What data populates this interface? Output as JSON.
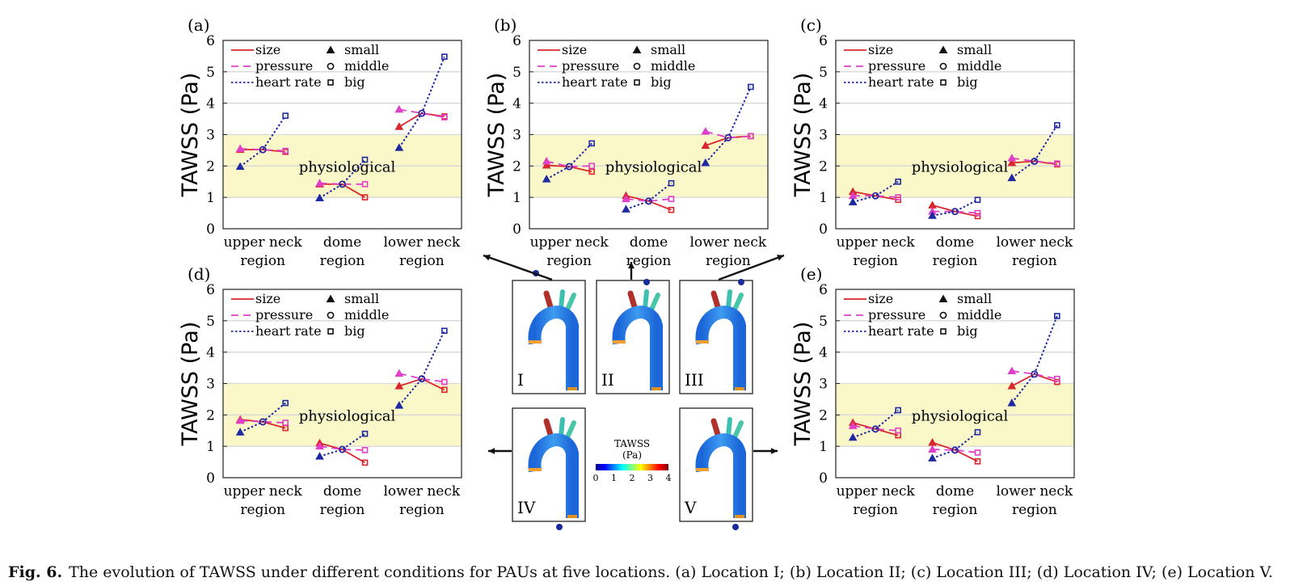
{
  "colors": {
    "size": "#d9272e",
    "pressure": "#e040c8",
    "heart_rate": "#1f2aa0",
    "band": "#faf8c8",
    "grid": "#d8d8d8"
  },
  "legend": {
    "lines": [
      "size",
      "pressure",
      "heart rate"
    ],
    "markers": [
      "small",
      "middle",
      "big"
    ]
  },
  "band_label": "physiological",
  "inset": {
    "colorbar_title": "TAWSS",
    "colorbar_unit": "(Pa)",
    "colorbar_ticks": [
      "0",
      "1",
      "2",
      "3",
      "4"
    ],
    "locations": [
      "I",
      "II",
      "III",
      "IV",
      "V"
    ]
  },
  "caption": {
    "label": "Fig. 6.",
    "text": "The evolution of TAWSS under different conditions for PAUs at five locations. (a) Location I; (b) Location II; (c) Location III; (d) Location IV; (e) Location V."
  },
  "chart_data": [
    {
      "type": "line",
      "panel": "(a)",
      "categories": [
        "upper neck\nregion",
        "dome\nregion",
        "lower neck\nregion"
      ],
      "ylabel": "TAWSS (Pa)",
      "ylim": [
        0,
        6
      ],
      "yticks": [
        0,
        1,
        2,
        3,
        4,
        5,
        6
      ],
      "physiological_band": [
        1,
        3
      ],
      "series": [
        {
          "name": "size",
          "values": [
            [
              2.52,
              2.52,
              2.45
            ],
            [
              1.42,
              1.42,
              1.0
            ],
            [
              3.25,
              3.68,
              3.58
            ]
          ]
        },
        {
          "name": "pressure",
          "values": [
            [
              2.55,
              2.52,
              2.48
            ],
            [
              1.45,
              1.42,
              1.42
            ],
            [
              3.8,
              3.68,
              3.55
            ]
          ]
        },
        {
          "name": "heart rate",
          "values": [
            [
              1.98,
              2.52,
              3.6
            ],
            [
              0.98,
              1.42,
              2.2
            ],
            [
              2.58,
              3.68,
              5.48
            ]
          ]
        }
      ]
    },
    {
      "type": "line",
      "panel": "(b)",
      "categories": [
        "upper neck\nregion",
        "dome\nregion",
        "lower neck\nregion"
      ],
      "ylabel": "TAWSS (Pa)",
      "ylim": [
        0,
        6
      ],
      "yticks": [
        0,
        1,
        2,
        3,
        4,
        5,
        6
      ],
      "physiological_band": [
        1,
        3
      ],
      "series": [
        {
          "name": "size",
          "values": [
            [
              2.02,
              1.98,
              1.82
            ],
            [
              1.05,
              0.88,
              0.6
            ],
            [
              2.65,
              2.9,
              2.95
            ]
          ]
        },
        {
          "name": "pressure",
          "values": [
            [
              2.15,
              1.98,
              2.0
            ],
            [
              0.95,
              0.88,
              0.95
            ],
            [
              3.1,
              2.9,
              2.95
            ]
          ]
        },
        {
          "name": "heart rate",
          "values": [
            [
              1.58,
              1.98,
              2.72
            ],
            [
              0.62,
              0.88,
              1.45
            ],
            [
              2.1,
              2.9,
              4.52
            ]
          ]
        }
      ]
    },
    {
      "type": "line",
      "panel": "(c)",
      "categories": [
        "upper neck\nregion",
        "dome\nregion",
        "lower neck\nregion"
      ],
      "ylabel": "TAWSS (Pa)",
      "ylim": [
        0,
        6
      ],
      "yticks": [
        0,
        1,
        2,
        3,
        4,
        5,
        6
      ],
      "physiological_band": [
        1,
        3
      ],
      "series": [
        {
          "name": "size",
          "values": [
            [
              1.18,
              1.05,
              0.92
            ],
            [
              0.75,
              0.55,
              0.4
            ],
            [
              2.1,
              2.15,
              2.05
            ]
          ]
        },
        {
          "name": "pressure",
          "values": [
            [
              1.05,
              1.05,
              1.0
            ],
            [
              0.55,
              0.55,
              0.5
            ],
            [
              2.25,
              2.15,
              2.08
            ]
          ]
        },
        {
          "name": "heart rate",
          "values": [
            [
              0.85,
              1.05,
              1.5
            ],
            [
              0.42,
              0.55,
              0.92
            ],
            [
              1.62,
              2.15,
              3.3
            ]
          ]
        }
      ]
    },
    {
      "type": "line",
      "panel": "(d)",
      "categories": [
        "upper neck\nregion",
        "dome\nregion",
        "lower neck\nregion"
      ],
      "ylabel": "TAWSS (Pa)",
      "ylim": [
        0,
        6
      ],
      "yticks": [
        0,
        1,
        2,
        3,
        4,
        5,
        6
      ],
      "physiological_band": [
        1,
        3
      ],
      "series": [
        {
          "name": "size",
          "values": [
            [
              1.85,
              1.78,
              1.58
            ],
            [
              1.1,
              0.9,
              0.48
            ],
            [
              2.92,
              3.15,
              2.8
            ]
          ]
        },
        {
          "name": "pressure",
          "values": [
            [
              1.82,
              1.78,
              1.75
            ],
            [
              1.0,
              0.9,
              0.88
            ],
            [
              3.32,
              3.15,
              3.05
            ]
          ]
        },
        {
          "name": "heart rate",
          "values": [
            [
              1.45,
              1.78,
              2.38
            ],
            [
              0.68,
              0.9,
              1.4
            ],
            [
              2.3,
              3.15,
              4.68
            ]
          ]
        }
      ]
    },
    {
      "type": "line",
      "panel": "(e)",
      "categories": [
        "upper neck\nregion",
        "dome\nregion",
        "lower neck\nregion"
      ],
      "ylabel": "TAWSS (Pa)",
      "ylim": [
        0,
        6
      ],
      "yticks": [
        0,
        1,
        2,
        3,
        4,
        5,
        6
      ],
      "physiological_band": [
        1,
        3
      ],
      "series": [
        {
          "name": "size",
          "values": [
            [
              1.75,
              1.55,
              1.35
            ],
            [
              1.12,
              0.88,
              0.52
            ],
            [
              2.92,
              3.3,
              3.05
            ]
          ]
        },
        {
          "name": "pressure",
          "values": [
            [
              1.65,
              1.55,
              1.5
            ],
            [
              0.9,
              0.88,
              0.8
            ],
            [
              3.4,
              3.3,
              3.15
            ]
          ]
        },
        {
          "name": "heart rate",
          "values": [
            [
              1.28,
              1.55,
              2.15
            ],
            [
              0.62,
              0.88,
              1.45
            ],
            [
              2.38,
              3.3,
              5.15
            ]
          ]
        }
      ]
    }
  ]
}
